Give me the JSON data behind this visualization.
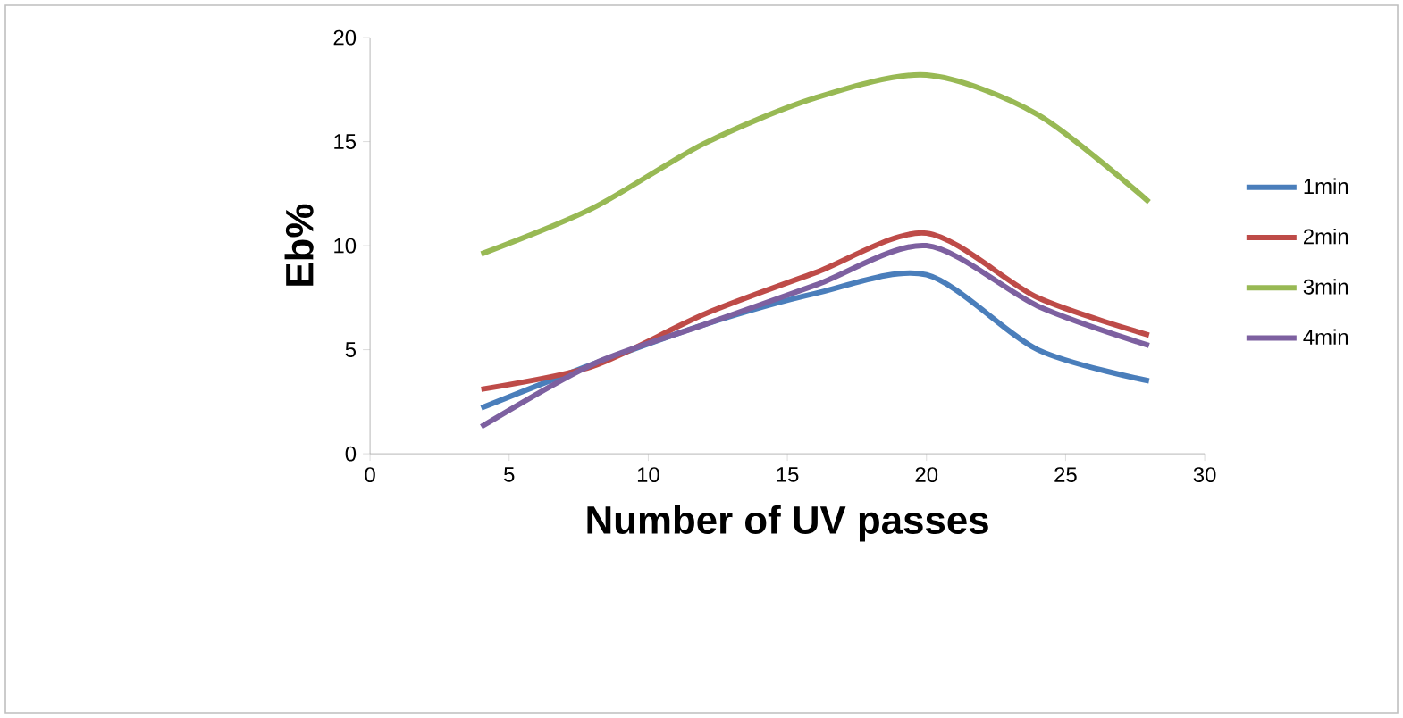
{
  "chart_data": {
    "type": "line",
    "xlabel": "Number of UV passes",
    "ylabel": "Eb%",
    "x": [
      4,
      8,
      12,
      16,
      20,
      24,
      28
    ],
    "series": [
      {
        "name": "1min",
        "color": "#4a7ebb",
        "values": [
          2.2,
          4.3,
          6.2,
          7.7,
          8.6,
          5.0,
          3.5
        ]
      },
      {
        "name": "2min",
        "color": "#be4b48",
        "values": [
          3.1,
          4.2,
          6.7,
          8.7,
          10.6,
          7.5,
          5.7
        ]
      },
      {
        "name": "3min",
        "color": "#98b954",
        "values": [
          9.6,
          11.8,
          14.9,
          17.1,
          18.2,
          16.3,
          12.1
        ]
      },
      {
        "name": "4min",
        "color": "#7d60a0",
        "values": [
          1.3,
          4.3,
          6.2,
          8.1,
          10.0,
          7.1,
          5.2
        ]
      }
    ],
    "xlim": [
      0,
      30
    ],
    "xticks": [
      0,
      5,
      10,
      15,
      20,
      25,
      30
    ],
    "ylim": [
      0,
      20
    ],
    "yticks": [
      0,
      5,
      10,
      15,
      20
    ],
    "legend": "right",
    "grid": false,
    "marker": "none",
    "line_style": "solid"
  }
}
